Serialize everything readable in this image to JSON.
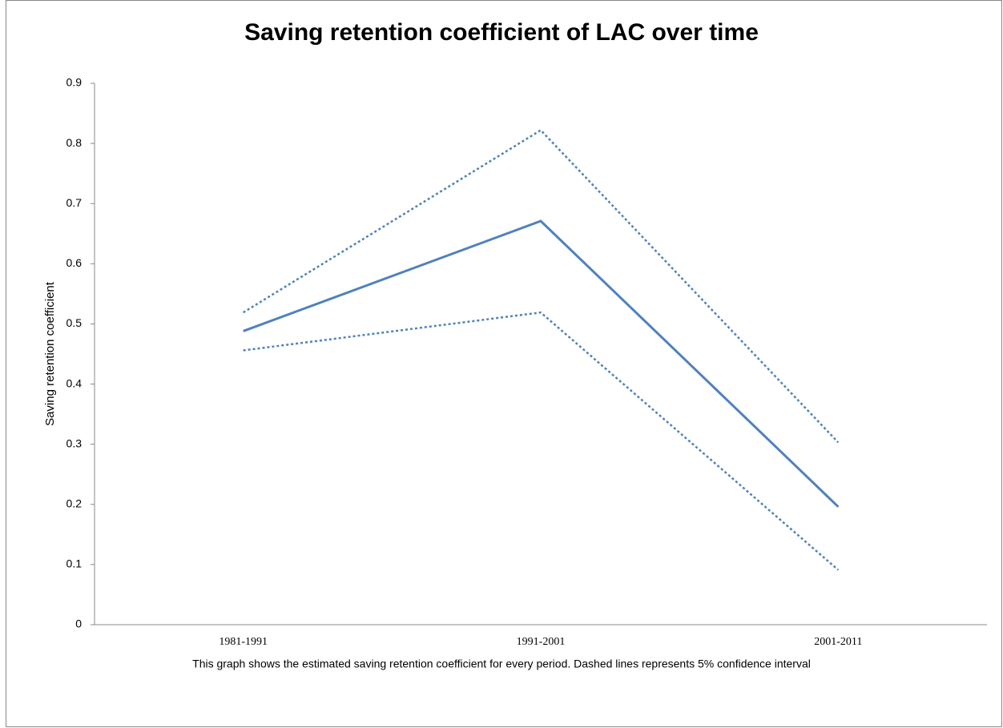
{
  "chart_data": {
    "type": "line",
    "title": "Saving retention coefficient of LAC over time",
    "y_label": "Saving retention coefficient",
    "caption": "This graph shows the estimated saving retention coefficient for every period. Dashed lines represents 5% confidence interval",
    "categories": [
      "1981-1991",
      "1991-2001",
      "2001-2011"
    ],
    "series": [
      {
        "color": "#4f81bd",
        "style": "solid",
        "values": [
          0.488,
          0.671,
          0.196
        ]
      },
      {
        "color": "#4f81bd",
        "style": "dotted",
        "values": [
          0.519,
          0.822,
          0.303
        ]
      },
      {
        "color": "#4f81bd",
        "style": "dotted",
        "values": [
          0.456,
          0.519,
          0.091
        ]
      }
    ],
    "ylim": [
      0,
      0.9
    ],
    "yticks": [
      0,
      0.1,
      0.2,
      0.3,
      0.4,
      0.5,
      0.6,
      0.7,
      0.8,
      0.9
    ],
    "grid": false
  }
}
